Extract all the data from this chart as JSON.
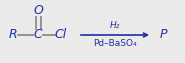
{
  "bg_color": "#ebebeb",
  "line_color": "#8c8c8c",
  "text_color": "#2030a0",
  "arrow_color": "#2030a0",
  "R_label": "R",
  "C_label": "C",
  "O_label": "O",
  "Cl_label": "Cl",
  "P_label": "P",
  "above_arrow": "H₂",
  "below_arrow": "Pd–BaSO₄",
  "font_size_main": 9,
  "font_size_arrow_text": 6.5
}
